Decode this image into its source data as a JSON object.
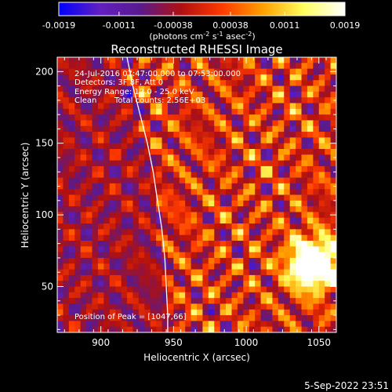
{
  "chart_data": {
    "type": "heatmap",
    "title": "Reconstructed RHESSI Image",
    "xlabel": "Heliocentric X (arcsec)",
    "ylabel": "Heliocentric Y (arcsec)",
    "xlim": [
      870,
      1062
    ],
    "ylim": [
      18,
      210
    ],
    "x_ticks": [
      900,
      950,
      1000,
      1050
    ],
    "y_ticks": [
      50,
      100,
      150,
      200
    ],
    "colorbar": {
      "range": [
        -0.0019,
        0.0019
      ],
      "tick_values": [
        -0.0019,
        -0.0011,
        -0.00038,
        0.00038,
        0.0011,
        0.0019
      ],
      "tick_labels": [
        "-0.0019",
        "-0.0011",
        "-0.00038",
        "0.00038",
        "0.0011",
        "0.0019"
      ],
      "units_pre": "(photons cm",
      "units_exp1": "-2",
      "units_mid1": " s",
      "units_exp2": "-1",
      "units_mid2": " asec",
      "units_exp3": "-2",
      "units_post": ")",
      "colormap": [
        "#0000ff",
        "#6020c0",
        "#5a1a8c",
        "#b01010",
        "#ff3a00",
        "#ffa000",
        "#ffff60",
        "#ffffff"
      ]
    },
    "annotations": {
      "time_range": "24-Jul-2016 07:47:00.000 to 07:53:00.000",
      "detectors": "Detectors: 3F 8F, Att 0",
      "energy_range": "Energy Range: 12.0 - 25.0 keV",
      "method": "Clean",
      "total_counts": "Total counts: 2.56E+03",
      "peak": "Position of Peak = [1047,66]"
    },
    "limb_curve": [
      [
        918,
        210
      ],
      [
        922,
        190
      ],
      [
        927,
        170
      ],
      [
        932,
        150
      ],
      [
        936,
        130
      ],
      [
        939,
        110
      ],
      [
        942,
        90
      ],
      [
        944,
        70
      ],
      [
        945,
        50
      ],
      [
        946,
        30
      ],
      [
        946,
        18
      ]
    ],
    "peak_position": [
      1047,
      66
    ]
  },
  "footer": {
    "timestamp": "5-Sep-2022 23:51"
  }
}
